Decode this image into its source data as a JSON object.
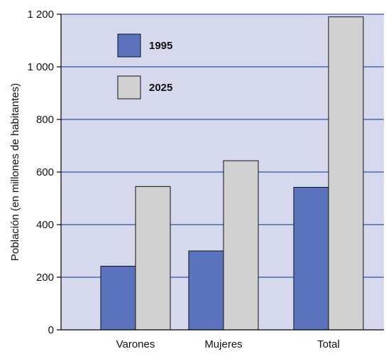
{
  "chart_data": {
    "type": "bar",
    "categories": [
      "Varones",
      "Mujeres",
      "Total"
    ],
    "series": [
      {
        "name": "1995",
        "values": [
          242,
          300,
          542
        ],
        "color": "#5b73bd"
      },
      {
        "name": "2025",
        "values": [
          545,
          643,
          1190
        ],
        "color": "#d1d1d1"
      }
    ],
    "ylabel": "Población (en millones de habitantes)",
    "xlabel": "",
    "ylim": [
      0,
      1200
    ],
    "yticks": [
      0,
      200,
      400,
      600,
      800,
      1000,
      1200
    ],
    "ytick_labels": [
      "0",
      "200",
      "400",
      "600",
      "800",
      "1 000",
      "1 200"
    ],
    "grid": true,
    "legend_position": "top-left",
    "colors": {
      "plot_background": "#d6d8ee",
      "gridline": "#2f55a4",
      "axis": "#000000",
      "bar_outline": "#111111"
    }
  }
}
